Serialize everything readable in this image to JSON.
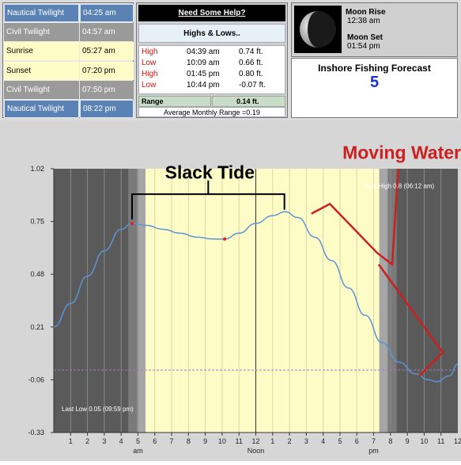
{
  "twilight": {
    "rows": [
      {
        "label": "Nautical Twilight",
        "time": "04:25 am",
        "style": "blue"
      },
      {
        "label": "Civil Twilight",
        "time": "04:57 am",
        "style": "grey"
      },
      {
        "label": "Sunrise",
        "time": "05:27 am",
        "style": "yellow"
      },
      {
        "label": "Sunset",
        "time": "07:20 pm",
        "style": "yellow"
      },
      {
        "label": "Civil Twilight",
        "time": "07:50 pm",
        "style": "grey"
      },
      {
        "label": "Nautical Twilight",
        "time": "08:22 pm",
        "style": "blue"
      }
    ]
  },
  "help": {
    "label": "Need Some Help?"
  },
  "tides": {
    "title": "Highs & Lows..",
    "rows": [
      {
        "type": "High",
        "time": "04:39 am",
        "height": "0.74 ft."
      },
      {
        "type": "Low",
        "time": "10:09 am",
        "height": "0.66 ft."
      },
      {
        "type": "High",
        "time": "01:45 pm",
        "height": "0.80 ft."
      },
      {
        "type": "Low",
        "time": "10:44 pm",
        "height": "-0.07 ft."
      }
    ],
    "range_label": "Range",
    "range_value": "0.14 ft.",
    "avg_range": "Average Monthly Range =0.19"
  },
  "moon": {
    "rise_label": "Moon Rise",
    "rise_time": "12:38 am",
    "set_label": "Moon Set",
    "set_time": "01:54 pm"
  },
  "forecast": {
    "label": "Inshore Fishing Forecast",
    "value": "5"
  },
  "colors": {
    "blue": "#5a82b4",
    "grey": "#9a9a9a",
    "yellow": "#fdfcc6",
    "curve": "#5b95d6",
    "annotation_red": "#cc2020",
    "forecast_blue": "#1c2fd0"
  },
  "chart_data": {
    "type": "line",
    "ylim": [
      -0.33,
      1.02
    ],
    "yticks": [
      "1.02",
      "0.75",
      "0.48",
      "0.21",
      "-0.06",
      "-0.33"
    ],
    "xticks": [
      "1",
      "2",
      "3",
      "4",
      "5",
      "6",
      "7",
      "8",
      "9",
      "10",
      "11",
      "12",
      "1",
      "2",
      "3",
      "4",
      "5",
      "6",
      "7",
      "8",
      "9",
      "10",
      "11",
      "12"
    ],
    "period_labels": [
      "am",
      "Noon",
      "pm"
    ],
    "series": [
      {
        "x": [
          0,
          1,
          2,
          3,
          4,
          4.65,
          5.5,
          6.5,
          7.5,
          8.5,
          9.5,
          10.15,
          11,
          12,
          13,
          13.75,
          14.5,
          15.5,
          16.5,
          17.5,
          18.5,
          19.5,
          20.5,
          21.5,
          22.25,
          22.73,
          23.5,
          24
        ],
        "values": [
          0.21,
          0.33,
          0.47,
          0.6,
          0.71,
          0.74,
          0.73,
          0.71,
          0.69,
          0.67,
          0.66,
          0.66,
          0.69,
          0.74,
          0.78,
          0.8,
          0.77,
          0.67,
          0.55,
          0.41,
          0.27,
          0.13,
          0.03,
          -0.03,
          -0.06,
          -0.07,
          -0.04,
          0.02
        ]
      }
    ],
    "markers": [
      {
        "x": 4.65,
        "y": 0.74
      },
      {
        "x": 10.15,
        "y": 0.66
      }
    ],
    "bands": {
      "nautical_dawn": 4.42,
      "civil_dawn": 4.95,
      "sunrise": 5.45,
      "sunset": 19.33,
      "civil_dusk": 19.83,
      "nautical_dusk": 20.37
    },
    "noon_x": 12,
    "reference_line_y": -0.01,
    "annotations": {
      "slack": "Slack Tide",
      "moving": "Moving Water",
      "next_high": "Next High 0.8 (06:12 am)",
      "last_low": "Last Low 0.05 (09:59 pm)"
    }
  }
}
